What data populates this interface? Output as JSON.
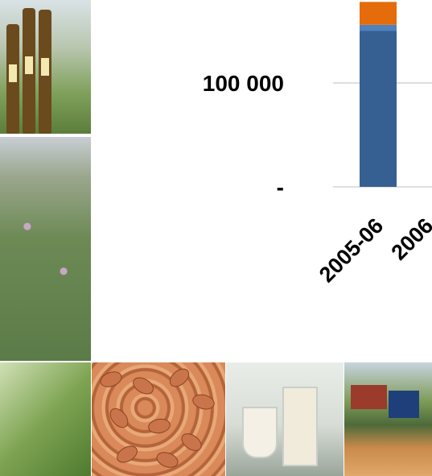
{
  "chart_data": {
    "type": "bar",
    "stacked": true,
    "categories": [
      "2005-06",
      "2006"
    ],
    "series": [
      {
        "values": [
          150000,
          null
        ],
        "color": "#376092"
      },
      {
        "values": [
          6000,
          null
        ],
        "color": "#4f81bd"
      },
      {
        "values": [
          22000,
          null
        ],
        "color": "#e46c0a"
      }
    ],
    "y_tick_labels": [
      {
        "value": 0,
        "label": "-"
      },
      {
        "value": 100000,
        "label": "100 000"
      }
    ],
    "grid": true,
    "title": "",
    "xlabel": "",
    "ylabel": ""
  },
  "photos": [
    {
      "id": "ph-oil",
      "icon": "oil-bottles-photo"
    },
    {
      "id": "ph-clover",
      "icon": "clover-field-photo"
    },
    {
      "id": "ph-flower",
      "icon": "pea-flower-photo"
    },
    {
      "id": "ph-grain",
      "icon": "grain-kernels-photo"
    },
    {
      "id": "ph-milk",
      "icon": "plant-milk-glasses-photo"
    },
    {
      "id": "ph-farm",
      "icon": "harvest-machinery-photo"
    }
  ]
}
